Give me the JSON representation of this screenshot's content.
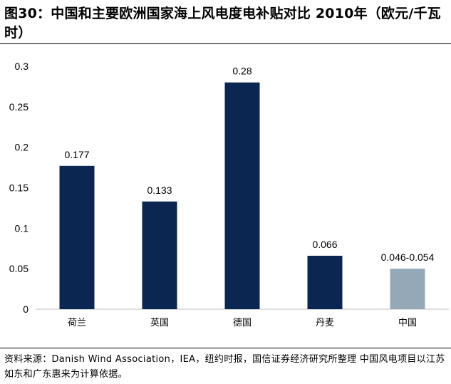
{
  "title": "图30：中国和主要欧洲国家海上风电度电补贴对比 2010年（欧元/千瓦时）",
  "source": "资料来源：Danish Wind Association，IEA，纽约时报，国信证券经济研究所整理 中国风电项目以江苏如东和广东惠来为计算依据。",
  "colors": {
    "bar_primary": "#0b2650",
    "bar_highlight": "#95a8b8",
    "axis": "#bfbfbf"
  },
  "chart_data": {
    "type": "bar",
    "title": "",
    "xlabel": "",
    "ylabel": "",
    "ylim": [
      0,
      0.3
    ],
    "y_ticks": [
      "0",
      "0.05",
      "0.1",
      "0.15",
      "0.2",
      "0.25",
      "0.3"
    ],
    "grid": false,
    "categories": [
      "荷兰",
      "英国",
      "德国",
      "丹麦",
      "中国"
    ],
    "values": [
      0.177,
      0.133,
      0.28,
      0.066,
      0.05
    ],
    "data_labels": [
      "0.177",
      "0.133",
      "0.28",
      "0.066",
      "0.046-0.054"
    ],
    "highlight_index": 4
  }
}
